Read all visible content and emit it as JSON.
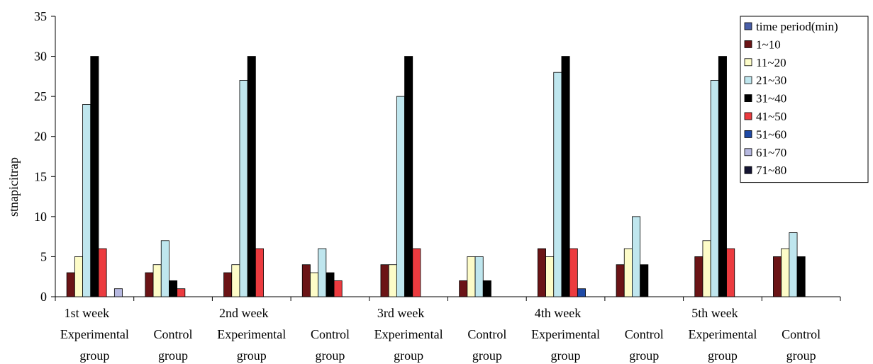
{
  "chart_data": {
    "type": "bar",
    "ylabel": "stnapicitrap",
    "ylim": [
      0,
      35
    ],
    "yticks": [
      0,
      5,
      10,
      15,
      20,
      25,
      30,
      35
    ],
    "grid": false,
    "legend_position": "top-right",
    "week_labels": [
      "1st week",
      "",
      "2nd week",
      "",
      "3rd week",
      "",
      "4th week",
      "",
      "5th week",
      ""
    ],
    "category_lines": [
      [
        "Experimental",
        "group"
      ],
      [
        "Control",
        "group"
      ],
      [
        "Experimental",
        "group"
      ],
      [
        "Control",
        "group"
      ],
      [
        "Experimental",
        "group"
      ],
      [
        "Control",
        "group"
      ],
      [
        "Experimental",
        "group"
      ],
      [
        "Control",
        "group"
      ],
      [
        "Experimental",
        "group"
      ],
      [
        "Control",
        "group"
      ]
    ],
    "series": [
      {
        "name": "time period(min)",
        "color": "#4a5fa8",
        "values": [
          0,
          0,
          0,
          0,
          0,
          0,
          0,
          0,
          0,
          0
        ]
      },
      {
        "name": "1~10",
        "color": "#6b1416",
        "values": [
          3,
          3,
          3,
          4,
          4,
          2,
          6,
          4,
          5,
          5
        ]
      },
      {
        "name": "11~20",
        "color": "#fdfcc8",
        "values": [
          5,
          4,
          4,
          3,
          4,
          5,
          5,
          6,
          7,
          6
        ]
      },
      {
        "name": "21~30",
        "color": "#bfe6ee",
        "values": [
          24,
          7,
          27,
          6,
          25,
          5,
          28,
          10,
          27,
          8
        ]
      },
      {
        "name": "31~40",
        "color": "#000000",
        "values": [
          30,
          2,
          30,
          3,
          30,
          2,
          30,
          4,
          30,
          5
        ]
      },
      {
        "name": "41~50",
        "color": "#ec3b3f",
        "values": [
          6,
          1,
          6,
          2,
          6,
          0,
          6,
          0,
          6,
          0
        ]
      },
      {
        "name": "51~60",
        "color": "#1f4aa6",
        "values": [
          0,
          0,
          0,
          0,
          0,
          0,
          1,
          0,
          0,
          0
        ]
      },
      {
        "name": "61~70",
        "color": "#b6b8e0",
        "values": [
          1,
          0,
          0,
          0,
          0,
          0,
          0,
          0,
          0,
          0
        ]
      },
      {
        "name": "71~80",
        "color": "#141432",
        "values": [
          0,
          0,
          0,
          0,
          0,
          0,
          0,
          0,
          0,
          0
        ]
      }
    ]
  }
}
